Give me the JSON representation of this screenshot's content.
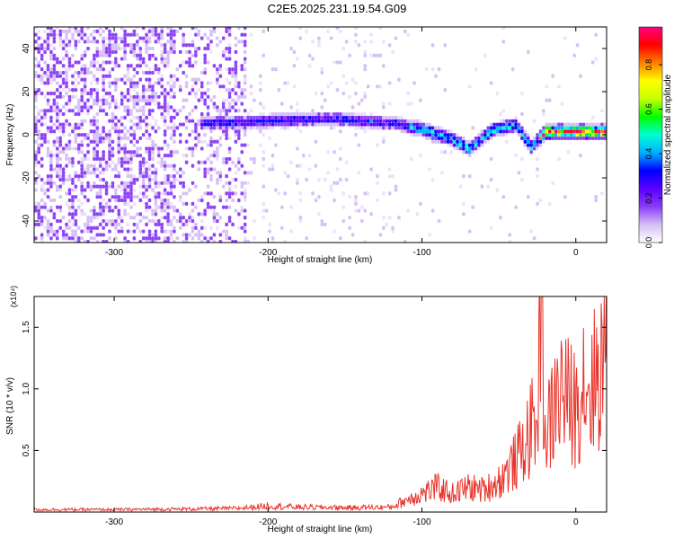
{
  "title": "C2E5.2025.231.19.54.G09",
  "chart_data": [
    {
      "type": "heatmap",
      "xlabel": "Height of straight line (km)",
      "ylabel": "Frequency (Hz)",
      "xlim": [
        -352,
        20
      ],
      "ylim": [
        -50,
        50
      ],
      "xticks": [
        -300,
        -200,
        -100,
        0
      ],
      "yticks": [
        -40,
        -20,
        0,
        20,
        40
      ],
      "colorbar": {
        "label": "Normalized spectral amplitude",
        "range": [
          0.0,
          0.97
        ],
        "ticks": [
          0.0,
          0.2,
          0.4,
          0.6,
          0.8
        ],
        "tick_labels": [
          "0.0",
          "0.2",
          "0.4",
          "0.6",
          "0.8"
        ],
        "colormap": [
          "#ffffff",
          "#d4bff5",
          "#8a3cf5",
          "#5a00ff",
          "#0000ff",
          "#00b0ff",
          "#00ffd0",
          "#00ff00",
          "#c8ff00",
          "#ffff00",
          "#ff8000",
          "#ff0000",
          "#ff0080"
        ]
      },
      "ridge": [
        [
          -240,
          5
        ],
        [
          -200,
          6
        ],
        [
          -160,
          7
        ],
        [
          -120,
          5
        ],
        [
          -100,
          2
        ],
        [
          -80,
          -3
        ],
        [
          -70,
          -7
        ],
        [
          -55,
          2
        ],
        [
          -40,
          4
        ],
        [
          -30,
          -6
        ],
        [
          -20,
          1
        ],
        [
          0,
          1
        ],
        [
          20,
          1
        ]
      ]
    },
    {
      "type": "line",
      "xlabel": "Height of straight line (km)",
      "ylabel": "SNR (10 * v/v)",
      "y_multiplier": "(x10⁴)",
      "xlim": [
        -352,
        20
      ],
      "ylim": [
        0,
        1.75
      ],
      "xticks": [
        -300,
        -200,
        -100,
        0
      ],
      "yticks": [
        0.5,
        1.0,
        1.5
      ],
      "ytick_labels": [
        "0.5",
        "1.0",
        "1.5"
      ],
      "series": [
        {
          "color": "#e8332a",
          "x": [
            -352,
            -300,
            -250,
            -220,
            -200,
            -180,
            -150,
            -120,
            -110,
            -100,
            -90,
            -80,
            -70,
            -60,
            -50,
            -40,
            -35,
            -30,
            -25,
            -22,
            -20,
            -15,
            -10,
            -5,
            0,
            5,
            10,
            15,
            20
          ],
          "y": [
            0.02,
            0.02,
            0.025,
            0.03,
            0.05,
            0.04,
            0.035,
            0.04,
            0.1,
            0.15,
            0.2,
            0.15,
            0.2,
            0.18,
            0.25,
            0.4,
            0.5,
            0.65,
            0.75,
            1.75,
            0.6,
            0.8,
            1.0,
            0.9,
            0.85,
            1.1,
            1.0,
            1.15,
            1.35
          ]
        }
      ]
    }
  ]
}
